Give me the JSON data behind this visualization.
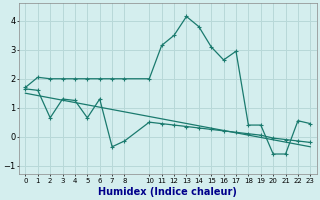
{
  "xlabel": "Humidex (Indice chaleur)",
  "bg_color": "#d4eeee",
  "grid_color": "#b8d8d8",
  "line_color": "#1a7a6e",
  "line1_x": [
    0,
    1,
    2,
    3,
    4,
    5,
    6,
    7,
    8,
    10,
    11,
    12,
    13,
    14,
    15,
    16,
    17,
    18,
    19,
    20,
    21,
    22,
    23
  ],
  "line1_y": [
    1.7,
    2.05,
    2.0,
    2.0,
    2.0,
    2.0,
    2.0,
    2.0,
    2.0,
    2.0,
    3.15,
    3.5,
    4.15,
    3.8,
    3.1,
    2.65,
    2.95,
    0.4,
    0.4,
    -0.6,
    -0.6,
    0.55,
    0.45
  ],
  "line2_x": [
    0,
    1,
    2,
    3,
    4,
    5,
    6,
    7,
    8,
    10,
    11,
    12,
    13,
    14,
    15,
    16,
    17,
    18,
    19,
    20,
    21,
    22,
    23
  ],
  "line2_y": [
    1.65,
    1.6,
    0.65,
    1.3,
    1.25,
    0.65,
    1.3,
    -0.35,
    -0.15,
    0.5,
    0.45,
    0.4,
    0.35,
    0.3,
    0.25,
    0.2,
    0.15,
    0.1,
    0.05,
    -0.05,
    -0.1,
    -0.15,
    -0.2
  ],
  "trend_x": [
    0,
    23
  ],
  "trend_y": [
    1.5,
    -0.35
  ],
  "ylim": [
    -1.3,
    4.6
  ],
  "xlim": [
    -0.5,
    23.5
  ],
  "yticks": [
    -1,
    0,
    1,
    2,
    3,
    4
  ],
  "xticks": [
    0,
    1,
    2,
    3,
    4,
    5,
    6,
    7,
    8,
    10,
    11,
    12,
    13,
    14,
    15,
    16,
    17,
    18,
    19,
    20,
    21,
    22,
    23
  ],
  "xlabel_color": "#00008b",
  "xlabel_fontsize": 7
}
